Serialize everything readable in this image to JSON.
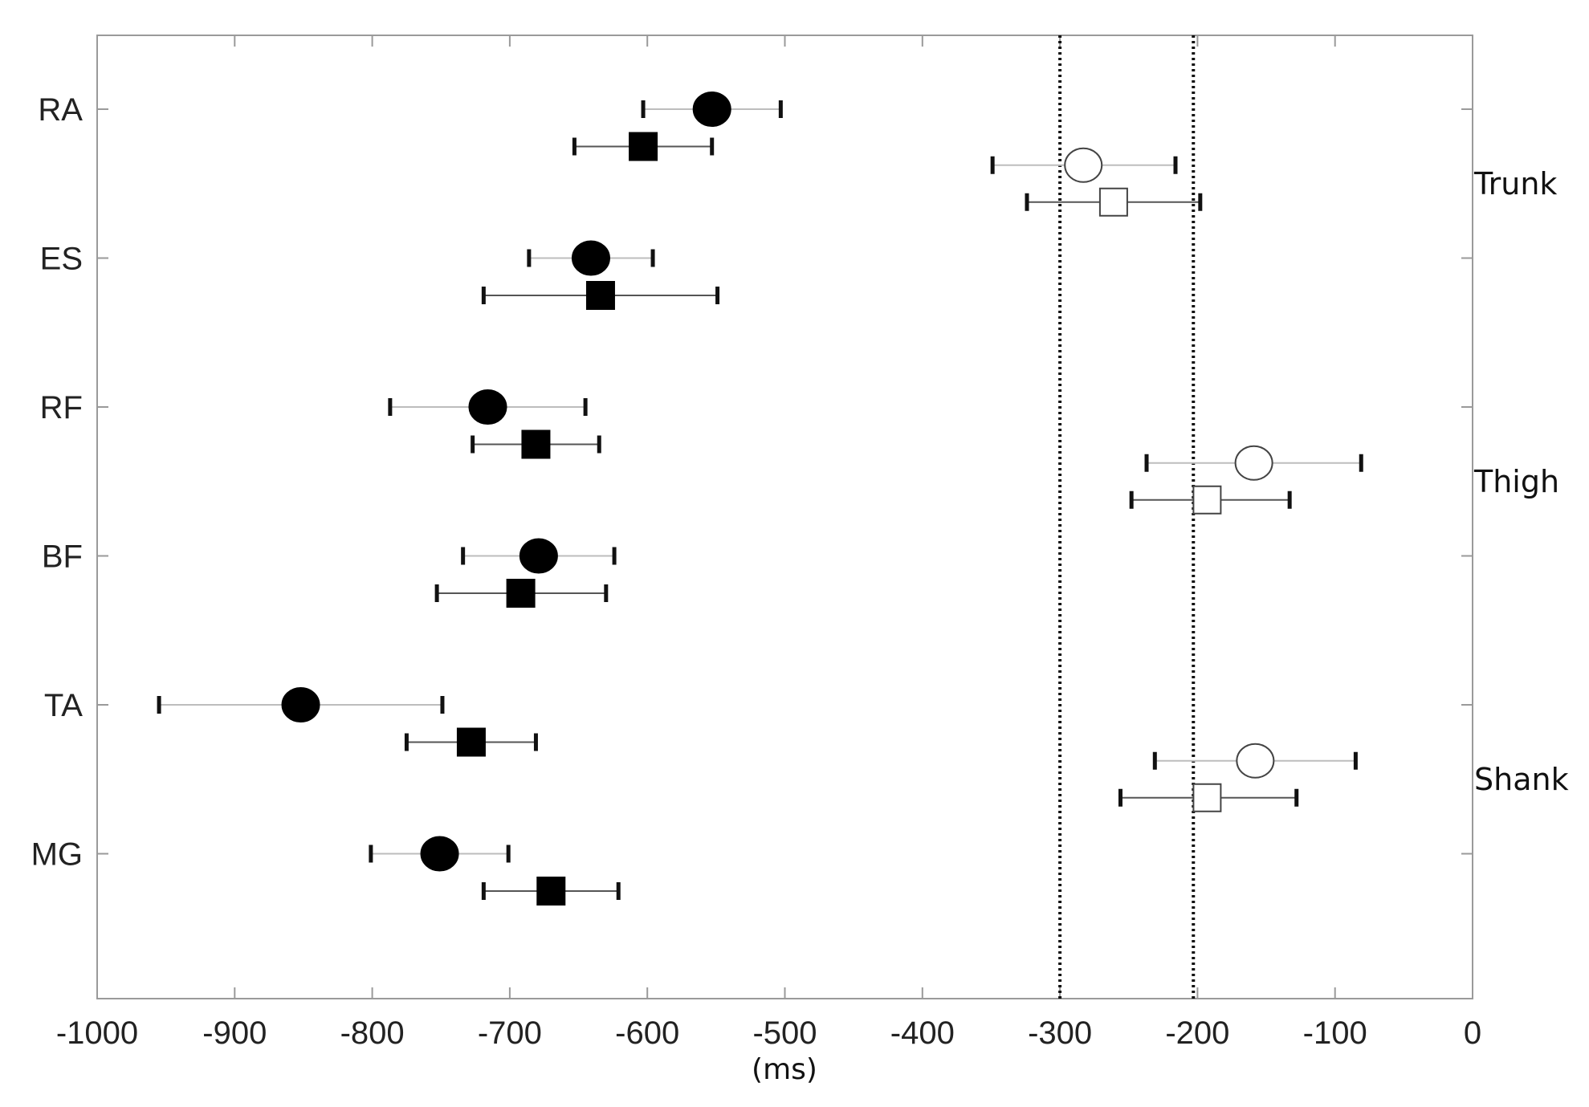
{
  "chart_data": {
    "type": "scatter",
    "title": "",
    "xlabel": "(ms)",
    "ylabel": "",
    "xlim": [
      -1000,
      0
    ],
    "xticks": [
      -1000,
      -900,
      -800,
      -700,
      -600,
      -500,
      -400,
      -300,
      -200,
      -100,
      0
    ],
    "categories": [
      "RA",
      "ES",
      "RF",
      "BF",
      "TA",
      "MG"
    ],
    "grid": false,
    "legend": "none",
    "reference_lines_x": [
      -300,
      -203
    ],
    "regions": [
      {
        "label": "Trunk",
        "muscles": [
          "RA",
          "ES"
        ]
      },
      {
        "label": "Thigh",
        "muscles": [
          "RF",
          "BF"
        ]
      },
      {
        "label": "Shank",
        "muscles": [
          "TA",
          "MG"
        ]
      }
    ],
    "series": [
      {
        "marker": "filled-circle",
        "points": [
          {
            "category": "RA",
            "value": -553,
            "low": -603,
            "high": -503
          },
          {
            "category": "ES",
            "value": -641,
            "low": -686,
            "high": -596
          },
          {
            "category": "RF",
            "value": -716,
            "low": -787,
            "high": -645
          },
          {
            "category": "BF",
            "value": -679,
            "low": -734,
            "high": -624
          },
          {
            "category": "TA",
            "value": -852,
            "low": -955,
            "high": -749
          },
          {
            "category": "MG",
            "value": -751,
            "low": -801,
            "high": -701
          }
        ]
      },
      {
        "marker": "filled-square",
        "points": [
          {
            "category": "RA",
            "value": -603,
            "low": -653,
            "high": -553
          },
          {
            "category": "ES",
            "value": -634,
            "low": -719,
            "high": -549
          },
          {
            "category": "RF",
            "value": -681,
            "low": -727,
            "high": -635
          },
          {
            "category": "BF",
            "value": -692,
            "low": -753,
            "high": -630
          },
          {
            "category": "TA",
            "value": -728,
            "low": -775,
            "high": -681
          },
          {
            "category": "MG",
            "value": -670,
            "low": -719,
            "high": -621
          }
        ]
      },
      {
        "marker": "open-circle",
        "points": [
          {
            "region": "Trunk",
            "value": -283,
            "low": -349,
            "high": -216
          },
          {
            "region": "Thigh",
            "value": -159,
            "low": -237,
            "high": -81
          },
          {
            "region": "Shank",
            "value": -158,
            "low": -231,
            "high": -85
          }
        ]
      },
      {
        "marker": "open-square",
        "points": [
          {
            "region": "Trunk",
            "value": -261,
            "low": -324,
            "high": -198
          },
          {
            "region": "Thigh",
            "value": -193,
            "low": -248,
            "high": -133
          },
          {
            "region": "Shank",
            "value": -193,
            "low": -256,
            "high": -128
          }
        ]
      }
    ]
  }
}
